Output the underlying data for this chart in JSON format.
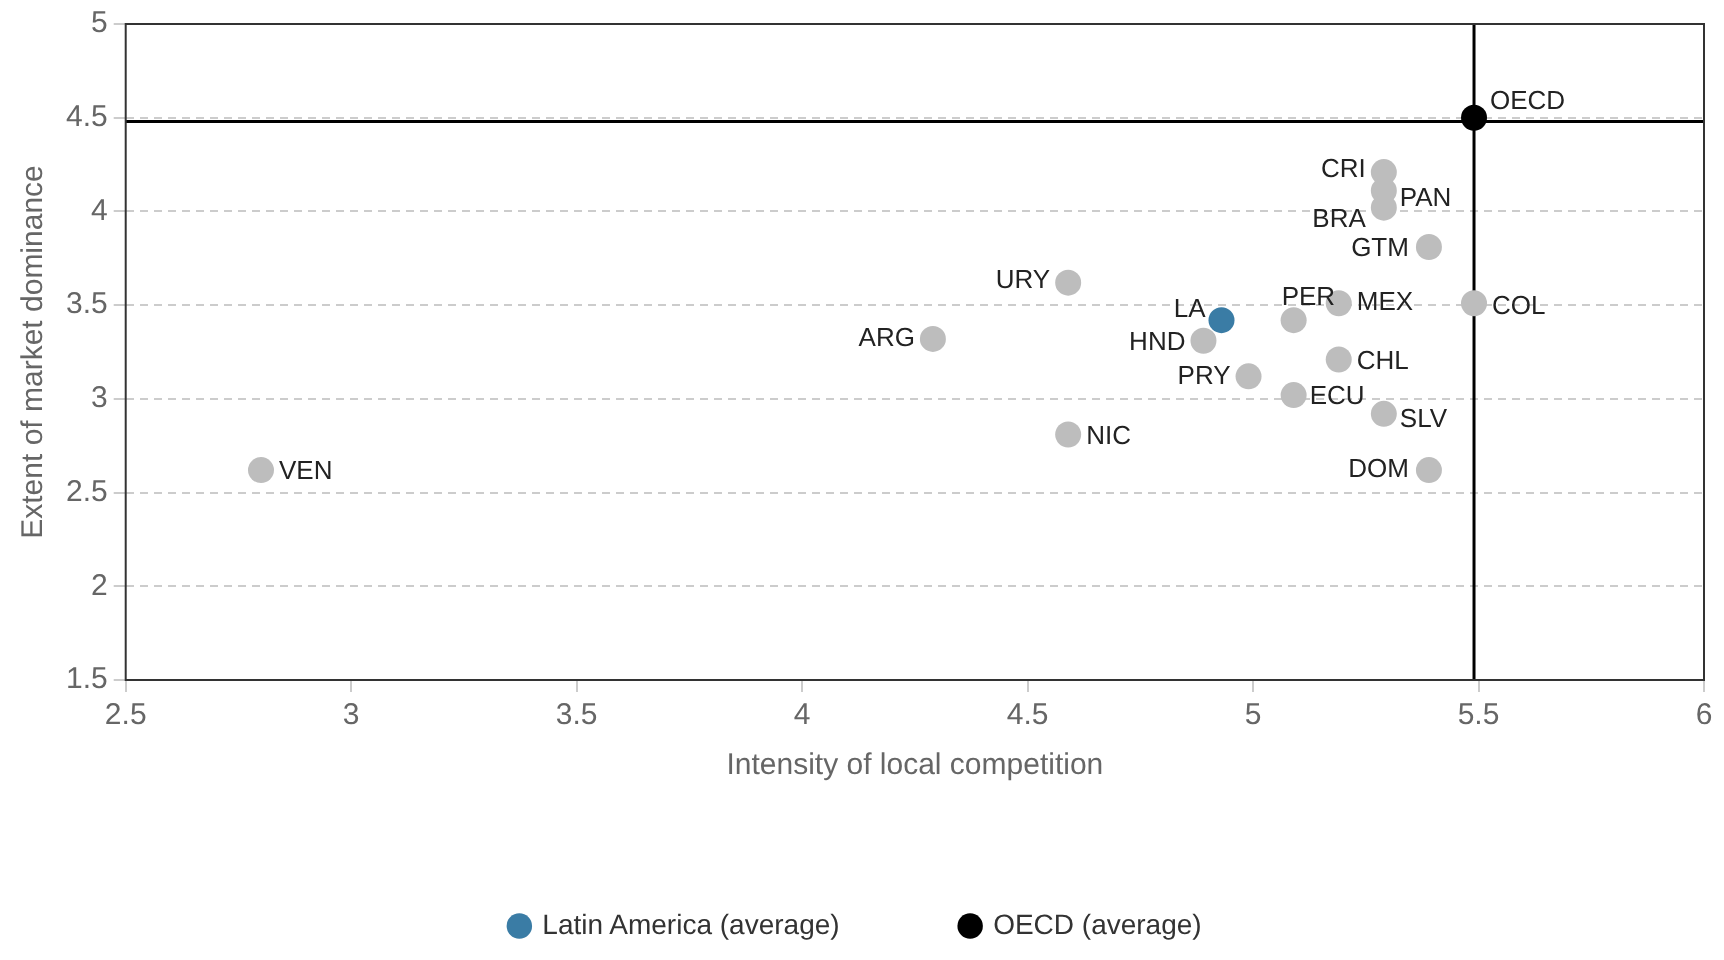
{
  "chart_data": {
    "type": "scatter",
    "xlabel": "Intensity of local competition",
    "ylabel": "Extent of market dominance",
    "xlim": [
      2.5,
      6
    ],
    "xticks": [
      2.5,
      3,
      3.5,
      4,
      4.5,
      5,
      5.5,
      6
    ],
    "ylim": [
      1.5,
      5
    ],
    "yticks": [
      1.5,
      2,
      2.5,
      3,
      3.5,
      4,
      4.5,
      5
    ],
    "grid": "y",
    "legend": "bottom",
    "marker": "circle",
    "series": [
      {
        "color": "#bdbdbd",
        "x": [
          2.8,
          4.29,
          4.59,
          4.59,
          4.89,
          4.99,
          5.09,
          5.09,
          5.19,
          5.19,
          5.29,
          5.29,
          5.29,
          5.29,
          5.39,
          5.39,
          5.49
        ],
        "values": [
          2.62,
          3.32,
          3.62,
          2.81,
          3.31,
          3.12,
          3.42,
          3.02,
          3.51,
          3.21,
          4.21,
          4.11,
          4.02,
          2.92,
          3.81,
          2.62,
          3.51
        ]
      },
      {
        "name": "Latin America (average)",
        "color": "#3a7ca5",
        "x": [
          4.93
        ],
        "values": [
          3.42
        ]
      },
      {
        "name": "OECD (average)",
        "color": "#000000",
        "x": [
          5.49
        ],
        "values": [
          4.5
        ]
      }
    ],
    "ref_lines": [
      {
        "axis": "x",
        "value": 5.49,
        "color": "#000000"
      },
      {
        "axis": "y",
        "value": 4.48,
        "color": "#000000"
      }
    ],
    "annotations": [
      {
        "text": "VEN",
        "x": 2.8,
        "y": 2.62
      },
      {
        "text": "ARG",
        "x": 4.29,
        "y": 3.32
      },
      {
        "text": "URY",
        "x": 4.59,
        "y": 3.62
      },
      {
        "text": "NIC",
        "x": 4.59,
        "y": 2.81
      },
      {
        "text": "HND",
        "x": 4.89,
        "y": 3.31
      },
      {
        "text": "LA",
        "x": 4.93,
        "y": 3.42
      },
      {
        "text": "PRY",
        "x": 4.99,
        "y": 3.12
      },
      {
        "text": "PER",
        "x": 5.09,
        "y": 3.42
      },
      {
        "text": "ECU",
        "x": 5.09,
        "y": 3.02
      },
      {
        "text": "MEX",
        "x": 5.19,
        "y": 3.51
      },
      {
        "text": "CHL",
        "x": 5.19,
        "y": 3.21
      },
      {
        "text": "CRI",
        "x": 5.29,
        "y": 4.21
      },
      {
        "text": "PAN",
        "x": 5.29,
        "y": 4.11
      },
      {
        "text": "BRA",
        "x": 5.29,
        "y": 4.02
      },
      {
        "text": "SLV",
        "x": 5.29,
        "y": 2.92
      },
      {
        "text": "GTM",
        "x": 5.39,
        "y": 3.81
      },
      {
        "text": "DOM",
        "x": 5.39,
        "y": 2.62
      },
      {
        "text": "COL",
        "x": 5.49,
        "y": 3.51
      },
      {
        "text": "OECD",
        "x": 5.49,
        "y": 4.5
      }
    ]
  }
}
